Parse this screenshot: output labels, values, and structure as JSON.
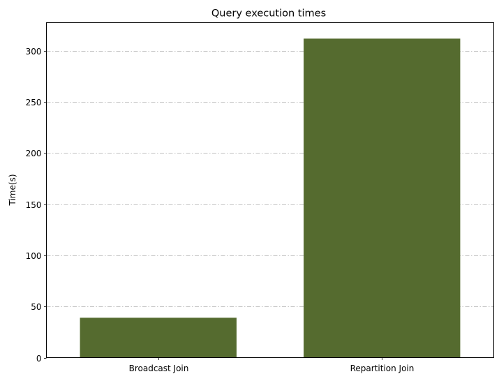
{
  "chart_data": {
    "type": "bar",
    "title": "Query execution times",
    "xlabel": "",
    "ylabel": "Time(s)",
    "categories": [
      "Broadcast Join",
      "Repartition Join"
    ],
    "values": [
      39,
      312
    ],
    "ylim": [
      0,
      327.6
    ],
    "yticks": [
      0,
      50,
      100,
      150,
      200,
      250,
      300
    ],
    "grid": "y-axis, dash-dot",
    "bar_color": "#556b2f",
    "grid_color": "#b0b0b0"
  }
}
